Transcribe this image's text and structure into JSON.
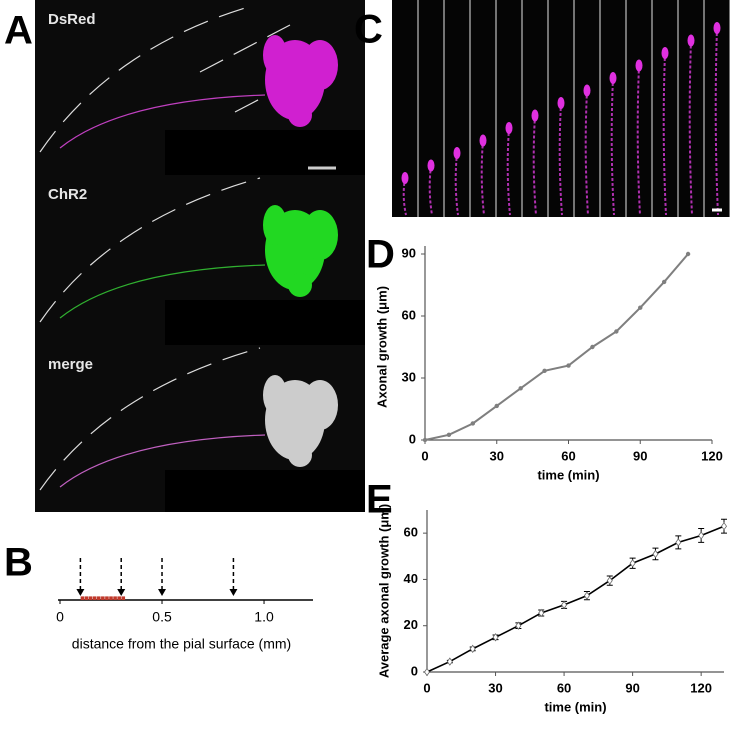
{
  "panels": {
    "A": {
      "panel_label": "A",
      "labels": [
        "DsRed",
        "ChR2",
        "merge"
      ]
    },
    "C": {
      "panel_label": "C"
    }
  },
  "chart_data": [
    {
      "type": "dotplot",
      "panel_label": "B",
      "x_label": "distance from the pial surface (mm)",
      "xlim": [
        0,
        1.24
      ],
      "xticks": [
        0,
        0.5,
        {
          "value": 1,
          "label": "1.0"
        }
      ],
      "series": [
        {
          "style": "arrow",
          "color": "#000000",
          "x": [
            0.1,
            0.3,
            0.5,
            0.85
          ]
        },
        {
          "style": "dot",
          "color": "#c0392b",
          "x": [
            0.11,
            0.13,
            0.15,
            0.17,
            0.19,
            0.21,
            0.23,
            0.25,
            0.27,
            0.29,
            0.31
          ]
        }
      ]
    },
    {
      "type": "line",
      "panel_label": "D",
      "x_label": "time (min)",
      "y_label": "Axonal growth (μm)",
      "x": [
        0,
        10,
        20,
        30,
        40,
        50,
        60,
        70,
        80,
        90,
        100,
        110
      ],
      "xlim": [
        0,
        120
      ],
      "xticks": [
        0,
        30,
        60,
        90,
        120
      ],
      "ylim": [
        0,
        90
      ],
      "yticks": [
        0,
        30,
        60,
        90
      ],
      "series": [
        {
          "color": "#7f7f7f",
          "marker": "circle",
          "values": [
            0,
            2.5,
            8,
            16.5,
            25,
            33.5,
            36,
            45,
            52.5,
            64,
            76.5,
            90
          ]
        }
      ]
    },
    {
      "type": "line",
      "panel_label": "E",
      "x_label": "time (min)",
      "y_label": "Average axonal growth (μm)",
      "x": [
        0,
        10,
        20,
        30,
        40,
        50,
        60,
        70,
        80,
        90,
        100,
        110,
        120,
        130
      ],
      "xlim": [
        0,
        130
      ],
      "xticks": [
        0,
        30,
        60,
        90,
        120
      ],
      "ylim": [
        0,
        70
      ],
      "yticks": [
        0,
        20,
        40,
        60
      ],
      "series": [
        {
          "color": "#000000",
          "marker": "diamond",
          "values": [
            0,
            4.5,
            10,
            15,
            20,
            25.5,
            29,
            33,
            39.5,
            47,
            51,
            56,
            59,
            63
          ],
          "errors": [
            0,
            0.5,
            0.8,
            1,
            1.2,
            1.3,
            1.5,
            1.8,
            2,
            2.2,
            2.5,
            2.8,
            3,
            3
          ]
        }
      ]
    }
  ]
}
